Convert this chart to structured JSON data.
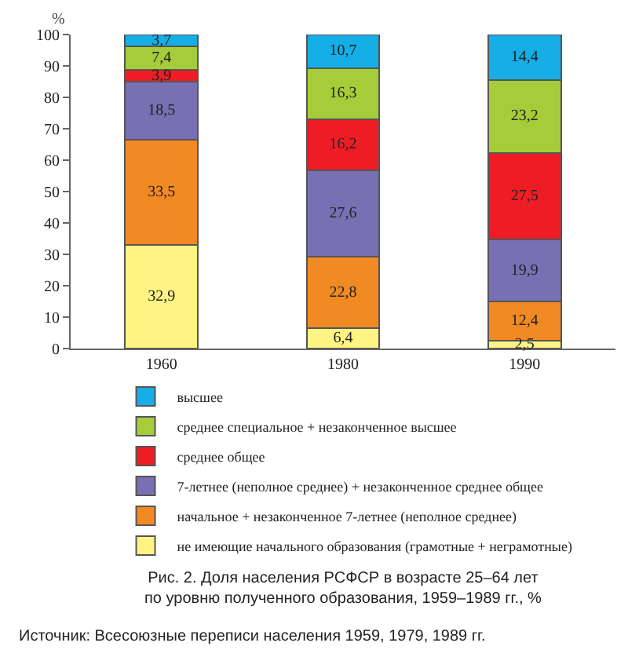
{
  "chart_data": {
    "type": "bar",
    "stacked": true,
    "title": "Рис. 2. Доля населения РСФСР в возрасте 25–64 лет\nпо уровню полученного образования, 1959–1989 гг., %",
    "ylabel": "%",
    "annotations": [
      "Источник: Всесоюзные переписи населения 1959, 1979, 1989 гг."
    ],
    "categories": [
      "1960",
      "1980",
      "1990"
    ],
    "series": [
      {
        "name": "не имеющие начального образования (грамотные + неграмотные)",
        "color": "#fff383",
        "values": [
          32.9,
          6.4,
          2.5
        ],
        "value_labels": [
          "32,9",
          "6,4",
          "2,5"
        ]
      },
      {
        "name": "начальное + незаконченное 7-летнее (неполное среднее)",
        "color": "#f28a24",
        "values": [
          33.5,
          22.8,
          12.4
        ],
        "value_labels": [
          "33,5",
          "22,8",
          "12,4"
        ]
      },
      {
        "name": "7-летнее (неполное среднее) + незаконченное среднее общее",
        "color": "#7770b3",
        "values": [
          18.5,
          27.6,
          19.9
        ],
        "value_labels": [
          "18,5",
          "27,6",
          "19,9"
        ]
      },
      {
        "name": "среднее общее",
        "color": "#ee1d25",
        "values": [
          3.9,
          16.2,
          27.5
        ],
        "value_labels": [
          "3,9",
          "16,2",
          "27,5"
        ]
      },
      {
        "name": "среднее специальное + незаконченное высшее",
        "color": "#a6cd39",
        "values": [
          7.4,
          16.3,
          23.2
        ],
        "value_labels": [
          "7,4",
          "16,3",
          "23,2"
        ]
      },
      {
        "name": "высшее",
        "color": "#15aee6",
        "values": [
          3.7,
          10.7,
          14.4
        ],
        "value_labels": [
          "3,7",
          "10,7",
          "14,4"
        ]
      }
    ],
    "ylim": [
      0,
      100
    ],
    "yticks": [
      0,
      10,
      20,
      30,
      40,
      50,
      60,
      70,
      80,
      90,
      100
    ],
    "legend": "bottom"
  }
}
